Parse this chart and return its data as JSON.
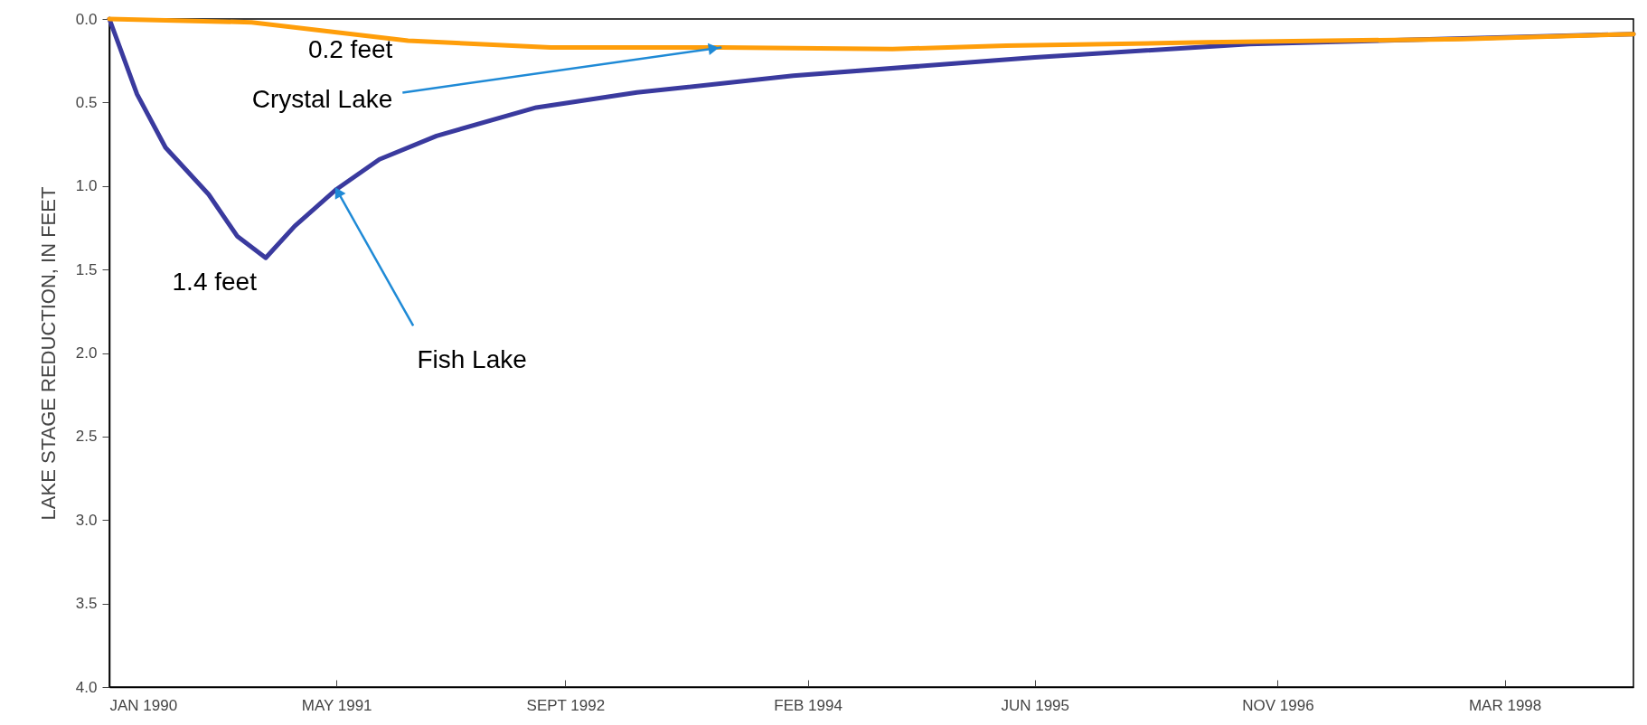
{
  "chart_data": {
    "type": "line",
    "ylabel": "LAKE STAGE REDUCTION, IN FEET",
    "x": [
      "1990-01",
      "1990-03",
      "1990-05",
      "1990-08",
      "1990-10",
      "1990-12",
      "1991-02",
      "1991-05",
      "1991-08",
      "1991-12",
      "1992-07",
      "1993-02",
      "1994-01",
      "1995-06",
      "1996-09",
      "1998-12"
    ],
    "series": [
      {
        "name": "Fish Lake",
        "color": "#3a3a9e",
        "values": [
          0,
          0.45,
          0.77,
          1.05,
          1.3,
          1.43,
          1.24,
          1.02,
          0.84,
          0.7,
          0.53,
          0.44,
          0.34,
          0.23,
          0.15,
          0.09
        ]
      },
      {
        "name": "Crystal Lake",
        "color": "#ff9e0a",
        "x": [
          "1990-01",
          "1990-11",
          "1991-10",
          "1992-08",
          "1993-08",
          "1994-08",
          "1995-04",
          "1996-06",
          "1997-12",
          "1998-12"
        ],
        "values": [
          0,
          0.02,
          0.13,
          0.17,
          0.17,
          0.18,
          0.16,
          0.14,
          0.12,
          0.09
        ]
      }
    ],
    "xlim": [
      "1990-01",
      "1998-12"
    ],
    "xticks": [
      {
        "value": "1990-01",
        "label": "JAN 1990"
      },
      {
        "value": "1991-05",
        "label": "MAY 1991"
      },
      {
        "value": "1992-09",
        "label": "SEPT 1992"
      },
      {
        "value": "1994-02",
        "label": "FEB 1994"
      },
      {
        "value": "1995-06",
        "label": "JUN 1995"
      },
      {
        "value": "1996-11",
        "label": "NOV 1996"
      },
      {
        "value": "1998-03",
        "label": "MAR 1998"
      }
    ],
    "ylim": [
      4.0,
      0
    ],
    "yticks": [
      {
        "value": 0,
        "label": "0.0"
      },
      {
        "value": 0.5,
        "label": "0.5"
      },
      {
        "value": 1.0,
        "label": "1.0"
      },
      {
        "value": 1.5,
        "label": "1.5"
      },
      {
        "value": 2.0,
        "label": "2.0"
      },
      {
        "value": 2.5,
        "label": "2.5"
      },
      {
        "value": 3.0,
        "label": "3.0"
      },
      {
        "value": 3.5,
        "label": "3.5"
      },
      {
        "value": 4.0,
        "label": "4.0"
      }
    ],
    "annotations": [
      {
        "text": "0.2 feet",
        "x": "1993-08",
        "y": 0.17
      },
      {
        "text": "1.4 feet",
        "x": "1990-12",
        "y": 1.43
      }
    ],
    "marker": "none"
  }
}
